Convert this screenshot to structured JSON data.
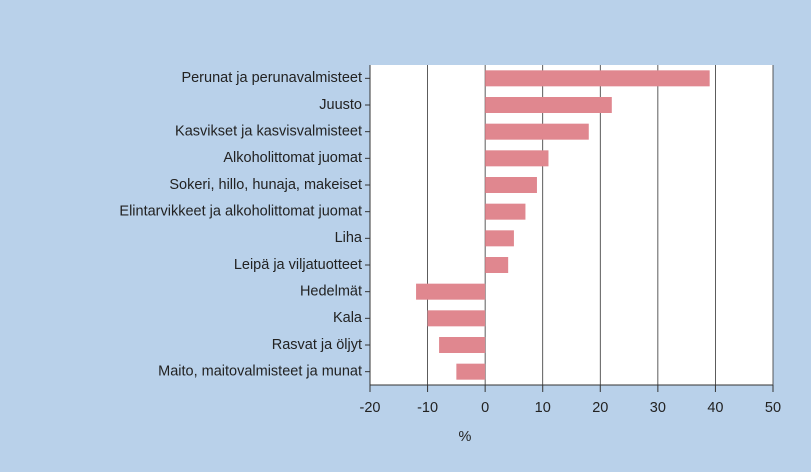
{
  "chart_data": {
    "type": "bar",
    "orientation": "horizontal",
    "categories": [
      "Perunat ja perunavalmisteet",
      "Juusto",
      "Kasvikset ja kasvisvalmisteet",
      "Alkoholittomat juomat",
      "Sokeri, hillo, hunaja, makeiset",
      "Elintarvikkeet ja alkoholittomat juomat",
      "Liha",
      "Leipä ja viljatuotteet",
      "Hedelmät",
      "Kala",
      "Rasvat ja öljyt",
      "Maito, maitovalmisteet ja munat"
    ],
    "values": [
      39,
      22,
      18,
      11,
      9,
      7,
      5,
      4,
      -12,
      -10,
      -8,
      -5
    ],
    "color": "#e0878f",
    "xlabel": "%",
    "xlim": [
      -20,
      50
    ],
    "xticks": [
      -20,
      -10,
      0,
      10,
      20,
      30,
      40,
      50
    ],
    "grid": true
  }
}
